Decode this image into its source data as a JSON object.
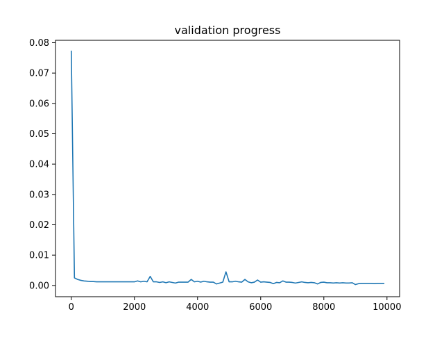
{
  "chart_data": {
    "type": "line",
    "title": "validation progress",
    "xlabel": "",
    "ylabel": "",
    "xlim": [
      -500,
      10400
    ],
    "ylim": [
      -0.0037,
      0.0808
    ],
    "x_ticks": [
      0,
      2000,
      4000,
      6000,
      8000,
      10000
    ],
    "x_tick_labels": [
      "0",
      "2000",
      "4000",
      "6000",
      "8000",
      "10000"
    ],
    "y_ticks": [
      0.0,
      0.01,
      0.02,
      0.03,
      0.04,
      0.05,
      0.06,
      0.07,
      0.08
    ],
    "y_tick_labels": [
      "0.00",
      "0.01",
      "0.02",
      "0.03",
      "0.04",
      "0.05",
      "0.06",
      "0.07",
      "0.08"
    ],
    "grid": false,
    "legend": "none",
    "series": [
      {
        "color": "#1f77b4",
        "x": [
          0,
          100,
          200,
          300,
          400,
          500,
          600,
          700,
          800,
          900,
          1000,
          1200,
          1400,
          1600,
          1800,
          2000,
          2100,
          2200,
          2300,
          2400,
          2500,
          2600,
          2700,
          2800,
          2900,
          3000,
          3100,
          3200,
          3300,
          3400,
          3500,
          3600,
          3700,
          3800,
          3900,
          4000,
          4100,
          4200,
          4300,
          4400,
          4500,
          4600,
          4700,
          4800,
          4900,
          5000,
          5100,
          5200,
          5300,
          5400,
          5500,
          5600,
          5700,
          5800,
          5900,
          6000,
          6100,
          6200,
          6300,
          6400,
          6500,
          6600,
          6700,
          6800,
          6900,
          7000,
          7100,
          7200,
          7300,
          7400,
          7500,
          7600,
          7700,
          7800,
          7900,
          8000,
          8100,
          8200,
          8300,
          8400,
          8500,
          8600,
          8700,
          8800,
          8900,
          9000,
          9100,
          9200,
          9300,
          9400,
          9500,
          9600,
          9700,
          9800,
          9900
        ],
        "y": [
          0.0772,
          0.0025,
          0.002,
          0.0017,
          0.0015,
          0.0014,
          0.0013,
          0.0013,
          0.0012,
          0.0012,
          0.0012,
          0.0012,
          0.0012,
          0.0012,
          0.0012,
          0.0012,
          0.0015,
          0.0012,
          0.0014,
          0.0012,
          0.003,
          0.0012,
          0.0012,
          0.001,
          0.0012,
          0.0009,
          0.0012,
          0.001,
          0.0008,
          0.0011,
          0.0011,
          0.0011,
          0.0011,
          0.002,
          0.0012,
          0.0014,
          0.0011,
          0.0014,
          0.0012,
          0.0011,
          0.0011,
          0.0005,
          0.0008,
          0.0011,
          0.0045,
          0.0012,
          0.0012,
          0.0014,
          0.0012,
          0.0011,
          0.002,
          0.0012,
          0.0009,
          0.0011,
          0.0018,
          0.0011,
          0.0012,
          0.0011,
          0.001,
          0.0006,
          0.001,
          0.0009,
          0.0015,
          0.0011,
          0.0011,
          0.001,
          0.0008,
          0.001,
          0.0012,
          0.001,
          0.0009,
          0.001,
          0.0009,
          0.0005,
          0.001,
          0.0011,
          0.0009,
          0.0009,
          0.0008,
          0.0009,
          0.0008,
          0.0009,
          0.0008,
          0.0008,
          0.0009,
          0.0003,
          0.0006,
          0.0007,
          0.0007,
          0.0007,
          0.0007,
          0.0006,
          0.0007,
          0.0007,
          0.0007
        ]
      }
    ]
  }
}
